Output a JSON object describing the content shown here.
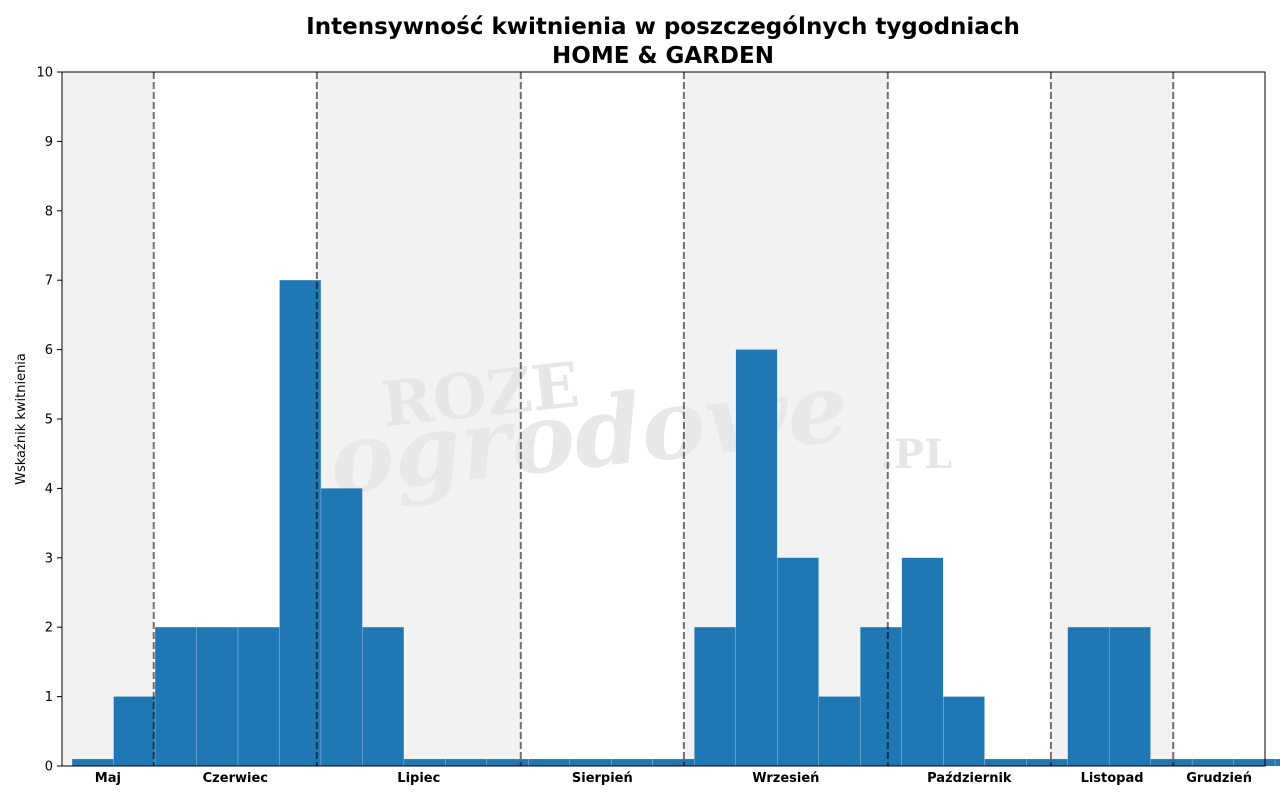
{
  "chart_data": {
    "type": "bar",
    "title": "Intensywność kwitnienia w poszczególnych tygodniach",
    "subtitle": "HOME & GARDEN",
    "ylabel": "Wskaźnik kwitnienia",
    "xlabel": "",
    "ylim": [
      0,
      10
    ],
    "yticks": [
      0,
      1,
      2,
      3,
      4,
      5,
      6,
      7,
      8,
      9,
      10
    ],
    "weeks_range": [
      18.5,
      48
    ],
    "values": [
      0.1,
      1,
      2,
      2,
      2,
      7,
      4,
      2,
      0.1,
      0.1,
      0.1,
      0.1,
      0.1,
      0.1,
      0.1,
      2,
      6,
      3,
      1,
      2,
      3,
      1,
      0.1,
      0.1,
      2,
      2,
      0.1,
      0.1,
      0.1,
      0.1
    ],
    "bar_color": "#1f77b4",
    "month_boundaries": [
      20,
      24,
      29,
      33,
      38,
      42,
      45
    ],
    "months": [
      {
        "name": "Maj",
        "start": 17.75,
        "end": 20,
        "shaded": true
      },
      {
        "name": "Czerwiec",
        "start": 20,
        "end": 24,
        "shaded": false
      },
      {
        "name": "Lipiec",
        "start": 24,
        "end": 29,
        "shaded": true
      },
      {
        "name": "Sierpień",
        "start": 29,
        "end": 33,
        "shaded": false
      },
      {
        "name": "Wrzesień",
        "start": 33,
        "end": 38,
        "shaded": true
      },
      {
        "name": "Październik",
        "start": 38,
        "end": 42,
        "shaded": false
      },
      {
        "name": "Listopad",
        "start": 42,
        "end": 45,
        "shaded": true
      },
      {
        "name": "Grudzień",
        "start": 45,
        "end": 47.25,
        "shaded": false
      }
    ],
    "grid": false,
    "watermark": {
      "line1": "ROZE",
      "line2": "ogrodowe",
      "line3": ".PL"
    }
  }
}
